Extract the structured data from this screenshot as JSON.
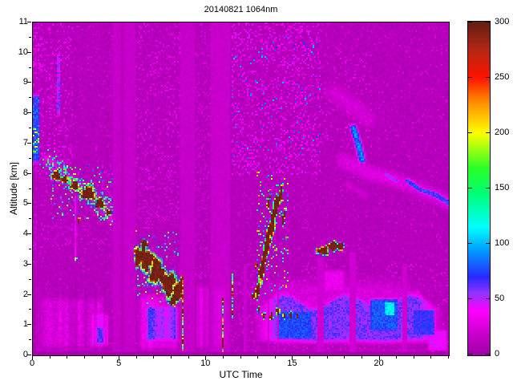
{
  "chart_data": {
    "type": "heatmap",
    "title": "20140821 1064nm",
    "xlabel": "UTC Time",
    "ylabel": "Altitude [km]",
    "x_range": [
      0,
      24
    ],
    "y_range": [
      0,
      11
    ],
    "x_major_ticks": [
      0,
      5,
      10,
      15,
      20
    ],
    "x_minor_step": 1,
    "y_major_ticks": [
      0,
      1,
      2,
      3,
      4,
      5,
      6,
      7,
      8,
      9,
      10,
      11
    ],
    "y_minor_step": 0.5,
    "colorbar": {
      "min": 0,
      "max": 300,
      "ticks": [
        0,
        50,
        100,
        150,
        200,
        250,
        300
      ]
    },
    "colormap_stops": [
      [
        0,
        "#A000A8"
      ],
      [
        18,
        "#C800CC"
      ],
      [
        40,
        "#FF00FF"
      ],
      [
        55,
        "#9633FF"
      ],
      [
        70,
        "#2A2AFF"
      ],
      [
        95,
        "#00A0FF"
      ],
      [
        115,
        "#00FFFF"
      ],
      [
        145,
        "#00FF78"
      ],
      [
        168,
        "#28FF28"
      ],
      [
        200,
        "#FFFF00"
      ],
      [
        228,
        "#FF8C00"
      ],
      [
        250,
        "#FF1400"
      ],
      [
        275,
        "#B42814"
      ],
      [
        300,
        "#641E14"
      ]
    ],
    "grid": {
      "cols": 260,
      "rows": 208,
      "cell": 2
    },
    "seed": 20140821,
    "description": "Lidar attenuated backscatter time-height cross-section, 21 Aug 2014, 1064 nm channel. Magenta background noise; descending aerosol/cloud band 1-4.5 UTC from 6 to 4.5 km; saturated (dark red) cloud slab 6-8.5 UTC descending 3.7 to 2 km; rising saturated plume 13-14.5 UTC from 2 to 5.8 km; saturated patch 16.4-18 UTC near 3.5 km; blue boundary-layer aerosol 12-24 UTC below 2 km with small saturated cumulus 12.7-15.3 UTC; faint cirrus streaks 18.5-24 UTC 5-7.5 km; white-out data gap columns near 4.6-5.9, 8.5-9.3, 10.2-11.3 UTC; narrow precipitation streaks at 8.6 and 10.9 UTC",
    "paint_ops": [
      {
        "op": "base",
        "v": 5,
        "amp": 9
      },
      {
        "op": "speckle",
        "t": [
          0,
          24
        ],
        "a": [
          0,
          11
        ],
        "p": 0.05,
        "vmin": 15,
        "vmax": 30
      },
      {
        "op": "speckle",
        "t": [
          0,
          2.3
        ],
        "a": [
          6,
          11
        ],
        "p": 0.15,
        "vmin": 16,
        "vmax": 45
      },
      {
        "op": "speckle",
        "t": [
          0,
          4.6
        ],
        "a": [
          3.5,
          6.5
        ],
        "p": 0.08,
        "vmin": 15,
        "vmax": 35
      },
      {
        "op": "speckle",
        "t": [
          5.9,
          8.5
        ],
        "a": [
          4.2,
          11
        ],
        "p": 0.12,
        "vmin": 15,
        "vmax": 38
      },
      {
        "op": "speckle",
        "t": [
          11.4,
          16.6
        ],
        "a": [
          6,
          11
        ],
        "p": 0.2,
        "vmin": 16,
        "vmax": 50
      },
      {
        "op": "speckle",
        "t": [
          11.4,
          16.6
        ],
        "a": [
          6.5,
          10.5
        ],
        "p": 0.02,
        "vmin": 55,
        "vmax": 105
      },
      {
        "op": "speckle",
        "t": [
          16.6,
          19.6
        ],
        "a": [
          6.8,
          10
        ],
        "p": 0.09,
        "vmin": 15,
        "vmax": 38
      },
      {
        "op": "speckle",
        "t": [
          9.3,
          10.25
        ],
        "a": [
          2.5,
          11
        ],
        "p": 0.1,
        "vmin": 15,
        "vmax": 32
      },
      {
        "op": "speckle",
        "t": [
          11.4,
          24
        ],
        "a": [
          0,
          3
        ],
        "p": 0.08,
        "vmin": 16,
        "vmax": 36
      },
      {
        "op": "patch",
        "t": [
          0,
          4.65
        ],
        "a": [
          0,
          2.1
        ],
        "v": 20,
        "jit": 14,
        "soft": 0.35
      },
      {
        "op": "patch",
        "t": [
          3.25,
          4.45
        ],
        "a": [
          0.2,
          1.5
        ],
        "v": 34,
        "jit": 14,
        "soft": 0.3
      },
      {
        "op": "patch",
        "t": [
          3.5,
          4.2
        ],
        "a": [
          0.35,
          0.95
        ],
        "v": 48,
        "jit": 12,
        "soft": 0.2
      },
      {
        "op": "stripes",
        "t": [
          0,
          4.65
        ],
        "amax": 2.3,
        "f": [
          0.7,
          1.35
        ]
      },
      {
        "op": "patch",
        "t": [
          5.88,
          8.55
        ],
        "a": [
          0,
          2.2
        ],
        "v": 28,
        "jit": 14,
        "soft": 0.3
      },
      {
        "op": "patch",
        "t": [
          6.3,
          8.5
        ],
        "a": [
          0.35,
          1.75
        ],
        "v": 55,
        "jit": 18,
        "soft": 0.3
      },
      {
        "op": "stripes",
        "t": [
          5.88,
          8.55
        ],
        "amax": 2.3,
        "f": [
          0.8,
          1.25
        ]
      },
      {
        "op": "patch",
        "t": [
          9.32,
          10.22
        ],
        "a": [
          0,
          2.55
        ],
        "v": 24,
        "jit": 8,
        "soft": 0.3
      },
      {
        "op": "stripes",
        "t": [
          9.32,
          10.22
        ],
        "amax": 2.6,
        "f": [
          0.75,
          1.25
        ]
      },
      {
        "op": "patch",
        "t": [
          11.4,
          24
        ],
        "a": [
          0,
          2.9
        ],
        "v": 22,
        "jit": 12,
        "soft": 0.5
      },
      {
        "op": "patch",
        "t": [
          12.45,
          24
        ],
        "a": [
          0.3,
          1.95
        ],
        "v": 56,
        "jit": 18,
        "soft": 0.3,
        "wavy": 0.25
      },
      {
        "op": "patch",
        "t": [
          13.9,
          16.3
        ],
        "a": [
          0.45,
          1.55
        ],
        "v": 74,
        "jit": 16,
        "soft": 0.25
      },
      {
        "op": "patch",
        "t": [
          19.3,
          21.25
        ],
        "a": [
          0.7,
          1.95
        ],
        "v": 76,
        "jit": 16,
        "soft": 0.25
      },
      {
        "op": "patch",
        "t": [
          21.8,
          23.3
        ],
        "a": [
          0.55,
          1.6
        ],
        "v": 66,
        "jit": 14,
        "soft": 0.25
      },
      {
        "op": "patch",
        "t": [
          20.3,
          20.9
        ],
        "a": [
          1.3,
          1.8
        ],
        "v": 110,
        "jit": 20,
        "soft": 0.2
      },
      {
        "op": "patch",
        "t": [
          16.6,
          18.2
        ],
        "a": [
          2.0,
          2.9
        ],
        "v": 30,
        "jit": 12,
        "soft": 0.4
      },
      {
        "op": "patch",
        "t": [
          22.7,
          24
        ],
        "a": [
          0.1,
          0.9
        ],
        "v": 40,
        "jit": 12,
        "soft": 0.3
      },
      {
        "op": "patch",
        "t": [
          0,
          0.4
        ],
        "a": [
          6.3,
          8.7
        ],
        "v": 72,
        "jit": 32,
        "soft": 0.15
      },
      {
        "op": "speckle",
        "t": [
          0,
          0.35
        ],
        "a": [
          6.7,
          7.5
        ],
        "p": 0.3,
        "vmin": 120,
        "vmax": 215
      },
      {
        "op": "speckle",
        "t": [
          0,
          0.6
        ],
        "a": [
          9.5,
          10.6
        ],
        "p": 0.3,
        "vmin": 18,
        "vmax": 45
      },
      {
        "op": "patch",
        "t": [
          1.42,
          1.58
        ],
        "a": [
          7.9,
          10.0
        ],
        "v": 48,
        "jit": 28,
        "soft": 0.1
      },
      {
        "op": "dband",
        "pts": [
          [
            0.85,
            6.5
          ],
          [
            1.5,
            6.05
          ],
          [
            2.4,
            5.7
          ],
          [
            3.2,
            5.4
          ],
          [
            3.95,
            4.95
          ],
          [
            4.55,
            4.55
          ]
        ],
        "hw": 0.28,
        "v": 30,
        "jit": 16
      },
      {
        "op": "dband",
        "pts": [
          [
            0.85,
            6.5
          ],
          [
            1.5,
            6.05
          ],
          [
            2.4,
            5.7
          ],
          [
            3.2,
            5.4
          ],
          [
            3.95,
            4.95
          ],
          [
            4.55,
            4.55
          ]
        ],
        "hw": 0.34,
        "v": 0,
        "jit": 0,
        "spk": {
          "p": 0.07,
          "vmin": 70,
          "vmax": 210
        }
      },
      {
        "op": "patch",
        "t": [
          2.42,
          2.54
        ],
        "a": [
          3.1,
          5.3
        ],
        "v": 30,
        "jit": 22,
        "soft": 0.05
      },
      {
        "op": "dband",
        "pts": [
          [
            17.9,
            6.45
          ],
          [
            19.5,
            6.05
          ],
          [
            21.0,
            5.8
          ],
          [
            22.5,
            5.45
          ],
          [
            24,
            5.05
          ]
        ],
        "hw": 0.42,
        "v": 24,
        "jit": 12
      },
      {
        "op": "dband",
        "pts": [
          [
            17.4,
            8.7
          ],
          [
            18.4,
            8.25
          ],
          [
            19.3,
            7.85
          ]
        ],
        "hw": 0.5,
        "v": 20,
        "jit": 10
      },
      {
        "op": "dband",
        "pts": [
          [
            18.1,
            5.7
          ],
          [
            19.1,
            5.3
          ]
        ],
        "hw": 0.22,
        "v": 18,
        "jit": 8
      },
      {
        "op": "dband",
        "pts": [
          [
            18.45,
            7.55
          ],
          [
            18.75,
            7.0
          ],
          [
            18.95,
            6.5
          ]
        ],
        "hw": 0.17,
        "v": 85,
        "jit": 30
      },
      {
        "op": "dband",
        "pts": [
          [
            21.6,
            5.8
          ],
          [
            22.3,
            5.5
          ],
          [
            23.25,
            5.3
          ],
          [
            23.95,
            5.05
          ]
        ],
        "hw": 0.14,
        "v": 68,
        "jit": 30
      },
      {
        "op": "dband",
        "pts": [
          [
            20.35,
            6.0
          ],
          [
            20.95,
            5.8
          ]
        ],
        "hw": 0.12,
        "v": 50,
        "jit": 22
      },
      {
        "op": "speckle",
        "t": [
          12.9,
          14.8
        ],
        "a": [
          2.0,
          6.1
        ],
        "p": 0.1,
        "vmin": 60,
        "vmax": 230
      },
      {
        "op": "speckle",
        "t": [
          5.9,
          8.6
        ],
        "a": [
          1.7,
          4.1
        ],
        "p": 0.08,
        "vmin": 60,
        "vmax": 220
      },
      {
        "op": "speckle",
        "t": [
          1.0,
          4.6
        ],
        "a": [
          4.5,
          6.3
        ],
        "p": 0.07,
        "vmin": 60,
        "vmax": 210
      },
      {
        "op": "gap",
        "t": [
          4.62,
          5.88
        ],
        "a": [
          0,
          11
        ],
        "v": 14,
        "jit": 6
      },
      {
        "op": "gap",
        "t": [
          5.06,
          5.24
        ],
        "a": [
          0,
          11
        ],
        "v": 9,
        "jit": 4
      },
      {
        "op": "gap",
        "t": [
          8.53,
          9.3
        ],
        "a": [
          0,
          11
        ],
        "v": 14,
        "jit": 6
      },
      {
        "op": "gap",
        "t": [
          10.2,
          11.32
        ],
        "a": [
          0,
          11
        ],
        "v": 15,
        "jit": 6
      },
      {
        "op": "patch",
        "t": [
          10.28,
          11.25
        ],
        "a": [
          0,
          2.5
        ],
        "v": 24,
        "jit": 6,
        "soft": 0.3
      },
      {
        "op": "gap",
        "t": [
          12.18,
          12.34
        ],
        "a": [
          0,
          3.0
        ],
        "v": 17,
        "jit": 5
      },
      {
        "op": "gap",
        "t": [
          13.57,
          13.7
        ],
        "a": [
          0,
          2.7
        ],
        "v": 17,
        "jit": 5
      },
      {
        "op": "gap",
        "t": [
          14.12,
          14.24
        ],
        "a": [
          0,
          2.2
        ],
        "v": 18,
        "jit": 5
      },
      {
        "op": "gap",
        "t": [
          16.42,
          16.78
        ],
        "a": [
          0,
          3.2
        ],
        "v": 18,
        "jit": 5
      },
      {
        "op": "gap",
        "t": [
          18.32,
          18.68
        ],
        "a": [
          0,
          3.4
        ],
        "v": 18,
        "jit": 5
      },
      {
        "op": "gap",
        "t": [
          21.32,
          21.62
        ],
        "a": [
          0,
          3.0
        ],
        "v": 18,
        "jit": 5
      },
      {
        "op": "blob",
        "cx": 1.35,
        "cy": 5.95,
        "rx": 0.3,
        "ry": 0.18
      },
      {
        "op": "blob",
        "cx": 1.85,
        "cy": 5.82,
        "rx": 0.22,
        "ry": 0.13
      },
      {
        "op": "blob",
        "cx": 2.4,
        "cy": 5.62,
        "rx": 0.28,
        "ry": 0.16
      },
      {
        "op": "blob",
        "cx": 3.2,
        "cy": 5.35,
        "rx": 0.45,
        "ry": 0.26
      },
      {
        "op": "blob",
        "cx": 3.85,
        "cy": 5.0,
        "rx": 0.28,
        "ry": 0.17
      },
      {
        "op": "blob",
        "cx": 4.35,
        "cy": 4.7,
        "rx": 0.17,
        "ry": 0.12
      },
      {
        "op": "blob",
        "cx": 2.65,
        "cy": 4.45,
        "rx": 0.09,
        "ry": 0.1
      },
      {
        "op": "blob",
        "cx": 2.48,
        "cy": 3.15,
        "rx": 0.06,
        "ry": 0.09,
        "peak": 200
      },
      {
        "op": "blob",
        "cx": 6.1,
        "cy": 3.25,
        "rx": 0.3,
        "ry": 0.33
      },
      {
        "op": "blob",
        "cx": 6.55,
        "cy": 3.15,
        "rx": 0.42,
        "ry": 0.4
      },
      {
        "op": "blob",
        "cx": 6.4,
        "cy": 3.65,
        "rx": 0.22,
        "ry": 0.18
      },
      {
        "op": "blob",
        "cx": 7.15,
        "cy": 2.75,
        "rx": 0.48,
        "ry": 0.45
      },
      {
        "op": "blob",
        "cx": 7.8,
        "cy": 2.35,
        "rx": 0.45,
        "ry": 0.42
      },
      {
        "op": "blob",
        "cx": 8.3,
        "cy": 2.05,
        "rx": 0.26,
        "ry": 0.33
      },
      {
        "op": "blob",
        "cx": 8.05,
        "cy": 1.8,
        "rx": 0.2,
        "ry": 0.2
      },
      {
        "op": "blob",
        "cx": 8.5,
        "cy": 2.3,
        "rx": 0.1,
        "ry": 0.28
      },
      {
        "op": "blob",
        "cx": 13.0,
        "cy": 2.15,
        "rx": 0.13,
        "ry": 0.3,
        "s": 0.3
      },
      {
        "op": "blob",
        "cx": 13.25,
        "cy": 2.85,
        "rx": 0.17,
        "ry": 0.5,
        "s": 0.3
      },
      {
        "op": "blob",
        "cx": 13.5,
        "cy": 3.6,
        "rx": 0.18,
        "ry": 0.6,
        "s": 0.3
      },
      {
        "op": "blob",
        "cx": 13.8,
        "cy": 4.3,
        "rx": 0.19,
        "ry": 0.6,
        "s": 0.3
      },
      {
        "op": "blob",
        "cx": 14.05,
        "cy": 4.9,
        "rx": 0.16,
        "ry": 0.5,
        "s": 0.3
      },
      {
        "op": "blob",
        "cx": 14.3,
        "cy": 5.3,
        "rx": 0.12,
        "ry": 0.35,
        "s": 0.3
      },
      {
        "op": "blob",
        "cx": 13.62,
        "cy": 5.05,
        "rx": 0.08,
        "ry": 0.25,
        "s": 0.3
      },
      {
        "op": "blob",
        "cx": 14.5,
        "cy": 4.55,
        "rx": 0.07,
        "ry": 0.3,
        "s": 0.3
      },
      {
        "op": "blob",
        "cx": 16.75,
        "cy": 3.45,
        "rx": 0.38,
        "ry": 0.15
      },
      {
        "op": "blob",
        "cx": 17.3,
        "cy": 3.6,
        "rx": 0.3,
        "ry": 0.16
      },
      {
        "op": "blob",
        "cx": 17.72,
        "cy": 3.58,
        "rx": 0.25,
        "ry": 0.13
      },
      {
        "op": "blob",
        "cx": 12.75,
        "cy": 1.95,
        "rx": 0.1,
        "ry": 0.12
      },
      {
        "op": "blob",
        "cx": 13.05,
        "cy": 1.5,
        "rx": 0.08,
        "ry": 0.1
      },
      {
        "op": "blob",
        "cx": 13.35,
        "cy": 1.32,
        "rx": 0.1,
        "ry": 0.12
      },
      {
        "op": "blob",
        "cx": 13.78,
        "cy": 1.28,
        "rx": 0.1,
        "ry": 0.13
      },
      {
        "op": "blob",
        "cx": 14.15,
        "cy": 1.45,
        "rx": 0.12,
        "ry": 0.13
      },
      {
        "op": "blob",
        "cx": 14.52,
        "cy": 1.3,
        "rx": 0.08,
        "ry": 0.1
      },
      {
        "op": "blob",
        "cx": 14.9,
        "cy": 1.35,
        "rx": 0.09,
        "ry": 0.11
      },
      {
        "op": "blob",
        "cx": 15.28,
        "cy": 1.28,
        "rx": 0.07,
        "ry": 0.09
      },
      {
        "op": "blob",
        "cx": 12.92,
        "cy": 2.95,
        "rx": 0.07,
        "ry": 0.1
      },
      {
        "op": "vstreak",
        "t": 8.62,
        "w": 0.13,
        "a": [
          0.15,
          2.65
        ]
      },
      {
        "op": "vstreak",
        "t": 10.93,
        "w": 0.1,
        "a": [
          0.1,
          1.9
        ]
      },
      {
        "op": "vstreak",
        "t": 11.52,
        "w": 0.09,
        "a": [
          1.2,
          2.7
        ]
      },
      {
        "op": "gap",
        "t": [
          0,
          24
        ],
        "a": [
          0,
          0.09
        ],
        "v": 2,
        "jit": 3
      }
    ]
  }
}
